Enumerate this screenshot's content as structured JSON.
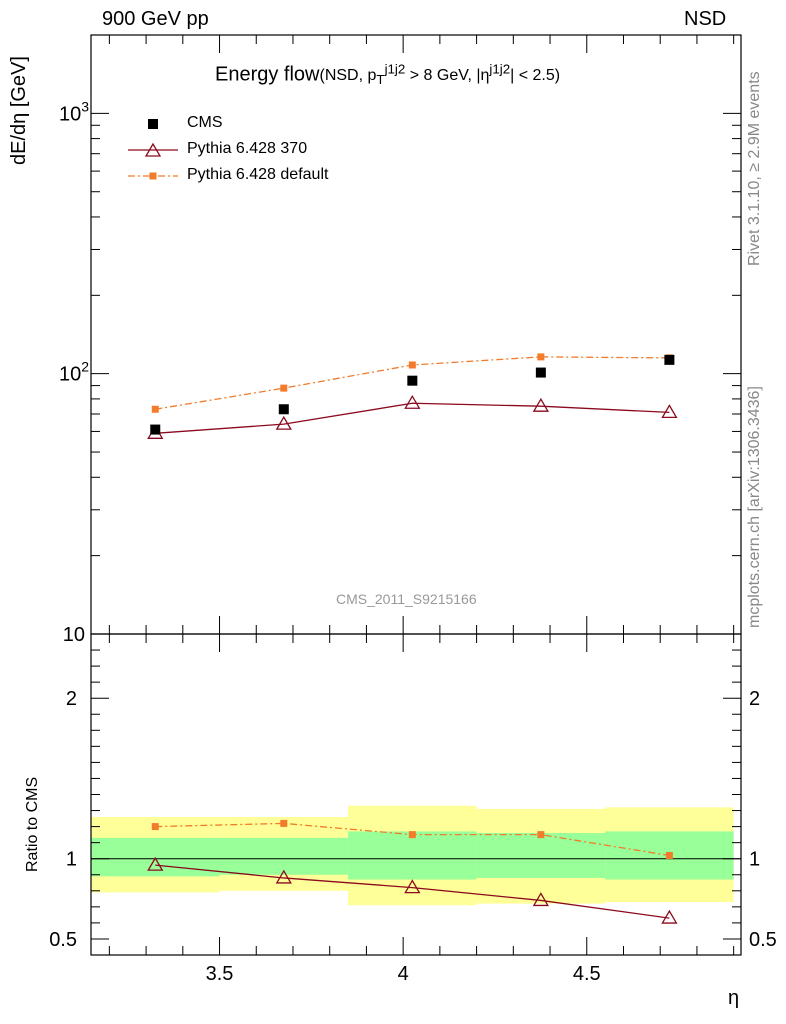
{
  "header": {
    "left": "900 GeV pp",
    "right": "NSD"
  },
  "side_labels": {
    "rivet": "Rivet 3.1.10, ≥ 2.9M events",
    "mcplots": "mcplots.cern.ch [arXiv:1306.3436]"
  },
  "watermark": "CMS_2011_S9215166",
  "chart_data": [
    {
      "type": "scatter",
      "title": "Energy flow",
      "subtitle": "(NSD, p_T^{j1j2} > 8 GeV, |η^{j1j2}| < 2.5)",
      "subtitle_parts": {
        "open": "(NSD, p",
        "sub": "T",
        "sup1": "j1j2",
        "mid": " > 8 GeV, |η",
        "sup2": "j1j2",
        "close": "| < 2.5)"
      },
      "ylabel": "dE/dη [GeV]",
      "yscale": "log",
      "ylim": [
        10,
        2000
      ],
      "xlim": [
        3.15,
        4.92
      ],
      "yticks": [
        {
          "value": 10,
          "label": "10"
        },
        {
          "value": 100,
          "label": "10",
          "sup": "2"
        },
        {
          "value": 1000,
          "label": "10",
          "sup": "3"
        }
      ],
      "legend_position": "top-left",
      "x": [
        3.325,
        3.675,
        4.025,
        4.375,
        4.725
      ],
      "series": [
        {
          "name": "CMS",
          "style": "square",
          "color": "#000000",
          "values": [
            61,
            73,
            94,
            101,
            113
          ]
        },
        {
          "name": "Pythia 6.428 370",
          "style": "open-triangle-line",
          "color": "#8b0a1e",
          "values": [
            59,
            64,
            77,
            75,
            71
          ]
        },
        {
          "name": "Pythia 6.428 default",
          "style": "dashdot-square",
          "color": "#f37b2c",
          "values": [
            73,
            88,
            108,
            116,
            115
          ]
        }
      ]
    },
    {
      "type": "scatter",
      "ylabel": "Ratio to CMS",
      "ylim": [
        0.4,
        2.4
      ],
      "xlabel": "η",
      "xticks": [
        3.5,
        4,
        4.5
      ],
      "xtick_labels": [
        "3.5",
        "4",
        "4.5"
      ],
      "yticks": [
        0.5,
        1,
        2
      ],
      "ytick_labels": [
        "0.5",
        "1",
        "2"
      ],
      "bin_edges": [
        3.15,
        3.5,
        3.85,
        4.2,
        4.55,
        4.9
      ],
      "band_yellow": [
        [
          0.79,
          1.26
        ],
        [
          0.8,
          1.26
        ],
        [
          0.71,
          1.33
        ],
        [
          0.72,
          1.31
        ],
        [
          0.73,
          1.32
        ]
      ],
      "band_green": [
        [
          0.89,
          1.13
        ],
        [
          0.9,
          1.13
        ],
        [
          0.87,
          1.17
        ],
        [
          0.88,
          1.16
        ],
        [
          0.87,
          1.17
        ]
      ],
      "band_colors": {
        "yellow": "#ffff99",
        "green": "#99ff99"
      },
      "series": [
        {
          "name": "Pythia 6.428 370",
          "color": "#8b0a1e",
          "values": [
            0.96,
            0.88,
            0.82,
            0.74,
            0.63
          ]
        },
        {
          "name": "Pythia 6.428 default",
          "color": "#f37b2c",
          "values": [
            1.2,
            1.22,
            1.15,
            1.15,
            1.02
          ]
        }
      ]
    }
  ]
}
